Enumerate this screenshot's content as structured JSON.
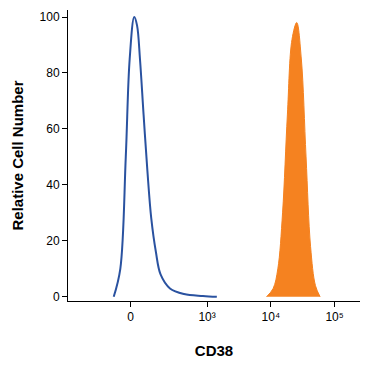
{
  "chart_data": {
    "type": "area",
    "xlabel": "CD38",
    "ylabel": "Relative Cell Number",
    "series": [
      {
        "type": "line",
        "color": "#2a52a0",
        "x": [
          -82,
          -48,
          -22,
          -4,
          17,
          30,
          44,
          62,
          82,
          104,
          133,
          166,
          248,
          428,
          860,
          1425
        ],
        "values": [
          0,
          10,
          50,
          85,
          100,
          97,
          85,
          65,
          45,
          28,
          16,
          8,
          3,
          1,
          0.3,
          0
        ]
      },
      {
        "type": "area",
        "color": "#f58220",
        "x": [
          8580,
          10900,
          12900,
          15300,
          18200,
          21500,
          25500,
          30100,
          35700,
          42000,
          50100,
          59300
        ],
        "values": [
          0,
          3,
          10,
          30,
          65,
          92,
          98,
          85,
          50,
          18,
          4,
          0
        ]
      }
    ],
    "xlim": [
      -600,
      250000
    ],
    "xticks": [
      0,
      {
        "value": 1000,
        "label": "10³"
      },
      {
        "value": 10000,
        "label": "10⁴"
      },
      {
        "value": 100000,
        "label": "10⁵"
      }
    ],
    "ylim": [
      -1.5,
      102.5
    ],
    "yticks": [
      0,
      20,
      40,
      60,
      80,
      100
    ],
    "grid": false
  }
}
